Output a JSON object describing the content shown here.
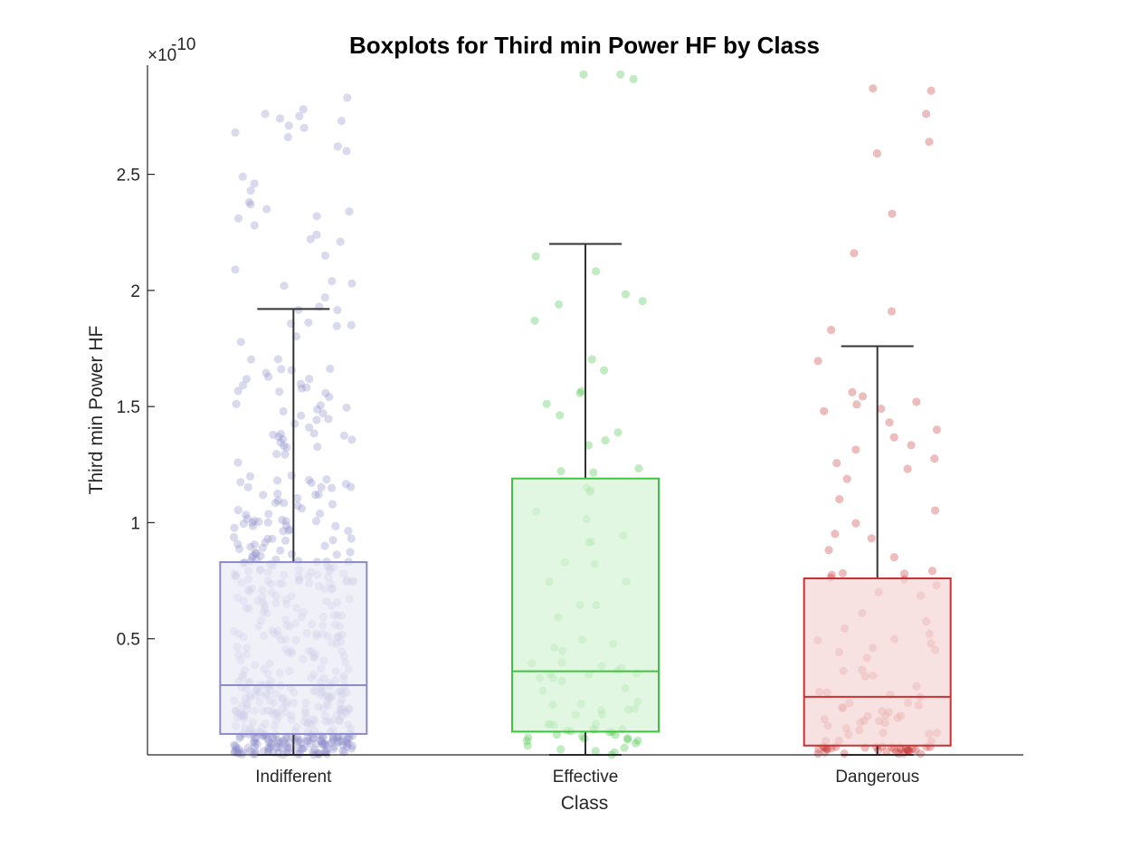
{
  "chart_data": {
    "type": "boxplot",
    "title": "Boxplots for Third min Power HF by Class",
    "xlabel": "Class",
    "ylabel": "Third min Power HF",
    "y_exponent_base": "×10",
    "y_exponent_power": "-10",
    "y_scale": 1e-10,
    "ylim": [
      0,
      2.97
    ],
    "yticks": [
      0.5,
      1,
      1.5,
      2,
      2.5
    ],
    "ytick_labels": [
      "0.5",
      "1",
      "1.5",
      "2",
      "2.5"
    ],
    "categories": [
      "Indifferent",
      "Effective",
      "Dangerous"
    ],
    "grid": false,
    "series": [
      {
        "name": "Indifferent",
        "color": "#8b8bc9",
        "fill": "#e9e9f5",
        "whisker_low": 0.0,
        "q1": 0.09,
        "median": 0.3,
        "q3": 0.83,
        "whisker_high": 1.92,
        "n_points": 520,
        "outliers": [
          2.78,
          2.76,
          2.75,
          2.74,
          2.73,
          2.71,
          2.7,
          2.68,
          2.66,
          2.62,
          2.6,
          2.49,
          2.46,
          2.43,
          2.38,
          2.37,
          2.35,
          2.34,
          2.32,
          2.31,
          2.28,
          2.24,
          2.22,
          2.21,
          2.15,
          2.09,
          2.04,
          2.03,
          2.02,
          1.97,
          1.93,
          2.83
        ]
      },
      {
        "name": "Effective",
        "color": "#3fc43f",
        "fill": "#d6f4d6",
        "whisker_low": 0.0,
        "q1": 0.1,
        "median": 0.36,
        "q3": 1.19,
        "whisker_high": 2.2,
        "n_points": 85,
        "outliers": [
          2.93,
          2.91,
          2.93
        ]
      },
      {
        "name": "Dangerous",
        "color": "#c83232",
        "fill": "#f4d4d4",
        "whisker_low": 0.0,
        "q1": 0.04,
        "median": 0.25,
        "q3": 0.76,
        "whisker_high": 1.76,
        "n_points": 110,
        "outliers": [
          2.87,
          2.86,
          2.76,
          2.64,
          2.59,
          2.33,
          2.16,
          1.91,
          1.83
        ]
      }
    ]
  }
}
